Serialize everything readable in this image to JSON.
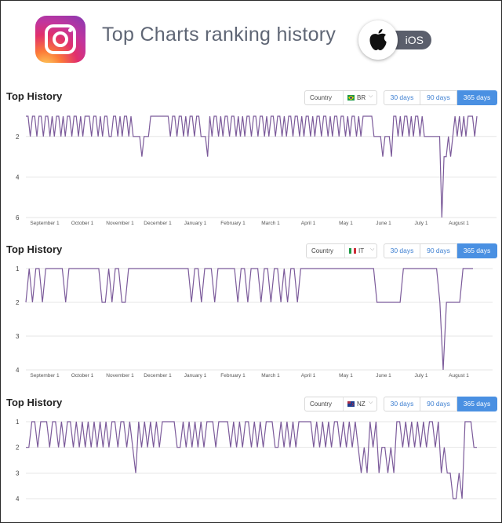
{
  "header": {
    "title": "Top Charts ranking history",
    "platform_label": "iOS",
    "app_icon": "instagram-icon",
    "platform_icon": "apple-icon"
  },
  "colors": {
    "line": "#7b5a9a",
    "grid": "#e6e6e6",
    "accent": "#4a90e2"
  },
  "panels": [
    {
      "title": "Top History",
      "country_label": "Country",
      "country_code": "BR",
      "country_flag": "flag-br-icon",
      "ranges": [
        "30 days",
        "90 days",
        "365 days"
      ],
      "active_range": "365 days"
    },
    {
      "title": "Top History",
      "country_label": "Country",
      "country_code": "IT",
      "country_flag": "flag-it-icon",
      "ranges": [
        "30 days",
        "90 days",
        "365 days"
      ],
      "active_range": "365 days"
    },
    {
      "title": "Top History",
      "country_label": "Country",
      "country_code": "NZ",
      "country_flag": "flag-nz-icon",
      "ranges": [
        "30 days",
        "90 days",
        "365 days"
      ],
      "active_range": "365 days"
    }
  ],
  "chart_data": [
    {
      "type": "line",
      "country": "BR",
      "title": "",
      "y_inverted": true,
      "ylim": [
        1,
        6
      ],
      "yticks": [
        "2",
        "4",
        "6"
      ],
      "xticks": [
        "September 1",
        "October 1",
        "November 1",
        "December 1",
        "January 1",
        "February 1",
        "March 1",
        "April 1",
        "May 1",
        "June 1",
        "July 1",
        "August 1"
      ],
      "grid": true,
      "series": [
        {
          "values": [
            1,
            1,
            2,
            1,
            1,
            2,
            1,
            1,
            2,
            1,
            1,
            2,
            1,
            2,
            1,
            1,
            2,
            1,
            2,
            1,
            1,
            2,
            1,
            1,
            2,
            1,
            2,
            1,
            1,
            1,
            2,
            1,
            1,
            2,
            1,
            2,
            1,
            1,
            2,
            2,
            1,
            1,
            2,
            1,
            2,
            1,
            1,
            2,
            1,
            2,
            2,
            2,
            2,
            3,
            2,
            2,
            2,
            1,
            1,
            1,
            1,
            1,
            1,
            1,
            1,
            1,
            2,
            1,
            1,
            2,
            1,
            1,
            2,
            1,
            2,
            1,
            1,
            2,
            1,
            1,
            2,
            2,
            2,
            3,
            1,
            2,
            1,
            1,
            2,
            1,
            2,
            1,
            1,
            2,
            1,
            1,
            2,
            1,
            2,
            1,
            2,
            1,
            1,
            2,
            1,
            1,
            2,
            1,
            1,
            2,
            1,
            2,
            1,
            1,
            2,
            1,
            1,
            2,
            1,
            2,
            1,
            1,
            2,
            1,
            1,
            2,
            1,
            2,
            1,
            1,
            2,
            1,
            2,
            1,
            1,
            2,
            1,
            1,
            2,
            1,
            2,
            1,
            1,
            2,
            1,
            1,
            2,
            1,
            2,
            1,
            1,
            2,
            1,
            2,
            1,
            1,
            1,
            1,
            1,
            2,
            2,
            2,
            2,
            3,
            2,
            2,
            2,
            3,
            1,
            1,
            2,
            1,
            2,
            1,
            1,
            2,
            1,
            2,
            1,
            1,
            2,
            1,
            2,
            2,
            2,
            2,
            2,
            2,
            2,
            2,
            6,
            3,
            3,
            2,
            3,
            2,
            1,
            2,
            1,
            2,
            1,
            2,
            1,
            1,
            1,
            2,
            1
          ]
        }
      ]
    },
    {
      "type": "line",
      "country": "IT",
      "title": "",
      "y_inverted": true,
      "ylim": [
        1,
        4
      ],
      "yticks": [
        "1",
        "2",
        "3",
        "4"
      ],
      "xticks": [
        "September 1",
        "October 1",
        "November 1",
        "December 1",
        "January 1",
        "February 1",
        "March 1",
        "April 1",
        "May 1",
        "June 1",
        "July 1",
        "August 1"
      ],
      "grid": true,
      "series": [
        {
          "values": [
            2,
            1,
            2,
            1,
            1,
            2,
            1,
            1,
            1,
            1,
            1,
            1,
            2,
            1,
            1,
            1,
            1,
            1,
            1,
            1,
            1,
            1,
            1,
            2,
            2,
            1,
            2,
            1,
            1,
            2,
            2,
            1,
            1,
            1,
            1,
            1,
            1,
            1,
            1,
            1,
            1,
            1,
            1,
            1,
            1,
            1,
            1,
            1,
            1,
            1,
            2,
            1,
            1,
            2,
            1,
            1,
            1,
            2,
            1,
            1,
            1,
            1,
            1,
            1,
            2,
            1,
            1,
            2,
            1,
            1,
            1,
            2,
            1,
            1,
            2,
            1,
            1,
            2,
            1,
            2,
            1,
            1,
            2,
            1,
            1,
            1,
            1,
            1,
            1,
            1,
            1,
            1,
            1,
            1,
            1,
            1,
            1,
            1,
            1,
            1,
            1,
            1,
            1,
            1,
            1,
            1,
            2,
            2,
            2,
            2,
            2,
            2,
            2,
            2,
            1,
            1,
            1,
            1,
            1,
            1,
            1,
            1,
            1,
            1,
            1,
            2,
            4,
            2,
            2,
            2,
            2,
            2,
            1,
            1,
            1,
            1
          ]
        }
      ]
    },
    {
      "type": "line",
      "country": "NZ",
      "title": "",
      "y_inverted": true,
      "ylim": [
        1,
        4
      ],
      "yticks": [
        "1",
        "2",
        "3",
        "4"
      ],
      "xticks": [],
      "grid": true,
      "series": [
        {
          "values": [
            2,
            2,
            1,
            1,
            2,
            1,
            1,
            1,
            2,
            1,
            1,
            2,
            1,
            2,
            1,
            1,
            2,
            1,
            2,
            1,
            2,
            1,
            2,
            1,
            2,
            1,
            2,
            1,
            2,
            1,
            1,
            2,
            1,
            1,
            2,
            1,
            2,
            3,
            1,
            2,
            1,
            2,
            1,
            2,
            1,
            2,
            1,
            1,
            1,
            1,
            1,
            2,
            2,
            1,
            2,
            1,
            2,
            1,
            2,
            1,
            2,
            1,
            1,
            1,
            2,
            1,
            1,
            1,
            1,
            2,
            1,
            2,
            1,
            2,
            1,
            1,
            2,
            1,
            2,
            1,
            2,
            1,
            1,
            1,
            2,
            2,
            1,
            2,
            1,
            2,
            1,
            2,
            1,
            1,
            1,
            1,
            1,
            2,
            1,
            2,
            1,
            2,
            1,
            2,
            1,
            1,
            2,
            1,
            2,
            1,
            2,
            1,
            2,
            3,
            2,
            3,
            1,
            2,
            1,
            3,
            2,
            2,
            3,
            2,
            3,
            1,
            1,
            2,
            1,
            2,
            1,
            2,
            1,
            2,
            1,
            2,
            1,
            1,
            2,
            1,
            3,
            2,
            3,
            3,
            4,
            4,
            3,
            4,
            1,
            1,
            1,
            2,
            2
          ]
        }
      ]
    }
  ]
}
